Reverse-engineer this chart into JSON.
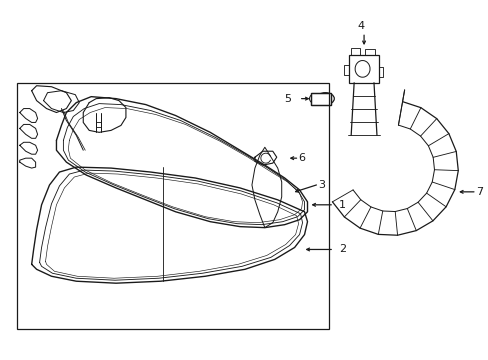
{
  "bg_color": "#ffffff",
  "line_color": "#1a1a1a",
  "lw": 0.9,
  "fig_w": 4.89,
  "fig_h": 3.6,
  "dpi": 100
}
